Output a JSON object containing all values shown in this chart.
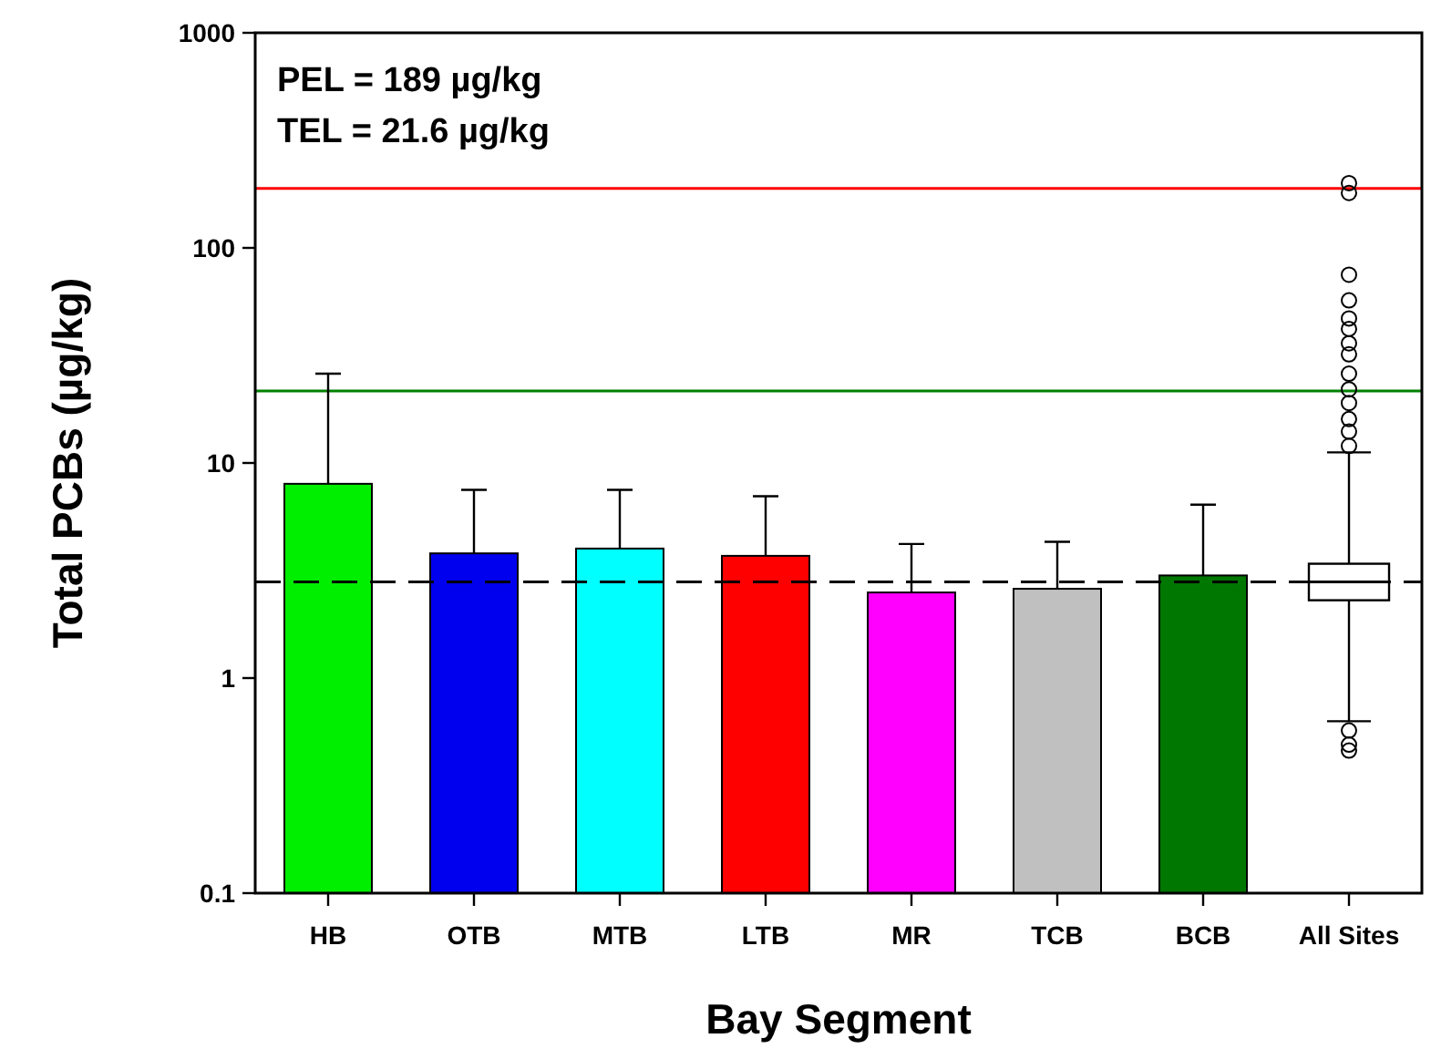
{
  "chart_data": {
    "type": "bar",
    "xlabel": "Bay Segment",
    "ylabel": "Total PCBs (µg/kg)",
    "categories": [
      "HB",
      "OTB",
      "MTB",
      "LTB",
      "MR",
      "TCB",
      "BCB",
      "All Sites"
    ],
    "series": [
      {
        "values": [
          8.0,
          3.8,
          4.0,
          3.7,
          2.5,
          2.6,
          3.0,
          null
        ],
        "colors": [
          "#00ee00",
          "#0000ee",
          "#00ffff",
          "#ff0000",
          "#ff00ff",
          "#c0c0c0",
          "#007700",
          null
        ],
        "errors": [
          [
            8.0,
            26
          ],
          [
            3.8,
            7.5
          ],
          [
            4.0,
            7.5
          ],
          [
            3.7,
            7.0
          ],
          [
            2.5,
            4.2
          ],
          [
            2.6,
            4.3
          ],
          [
            3.0,
            6.4
          ],
          null
        ]
      },
      {
        "type": "box",
        "color": "#ffffff",
        "boxes": [
          null,
          null,
          null,
          null,
          null,
          null,
          null,
          {
            "low": 0.63,
            "q1": 2.3,
            "median": 2.8,
            "q3": 3.4,
            "high": 11.2,
            "outliers": [
              200,
              180,
              75,
              57,
              47,
              42,
              36,
              32,
              26,
              22,
              19,
              16,
              14,
              12,
              0.57,
              0.49,
              0.46
            ]
          }
        ]
      }
    ],
    "log": "y",
    "ylim": [
      0.1,
      1000
    ],
    "yticks": [
      0.1,
      1,
      10,
      100,
      1000
    ],
    "grid": false,
    "ref_lines": [
      {
        "axis": "y",
        "value": 189,
        "color": "#ff0000",
        "line_style": "solid"
      },
      {
        "axis": "y",
        "value": 21.6,
        "color": "#008000",
        "line_style": "solid"
      },
      {
        "axis": "y",
        "value": 2.8,
        "color": "#000000",
        "line_style": "dashed"
      }
    ],
    "annotations": [
      "PEL = 189 µg/kg",
      "TEL = 21.6 µg/kg"
    ]
  }
}
